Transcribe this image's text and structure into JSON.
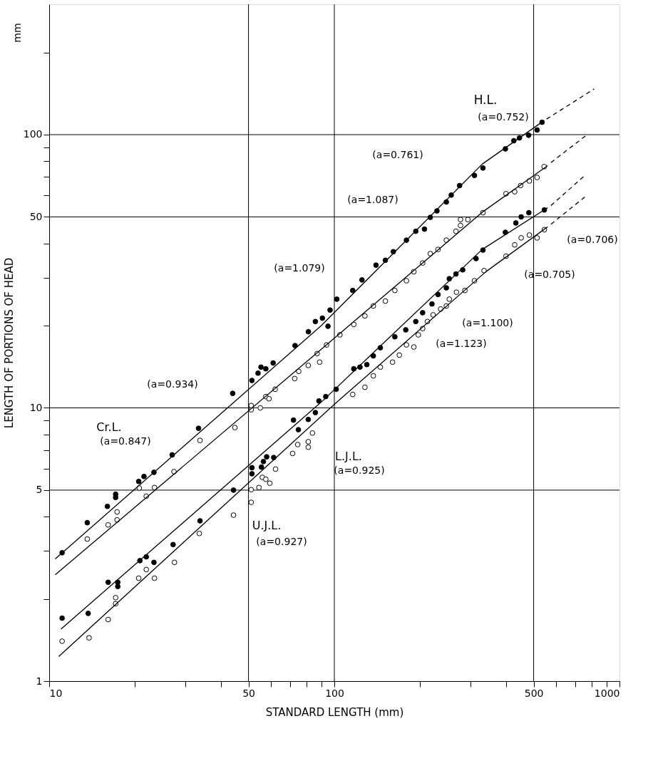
{
  "chart_data": {
    "type": "scatter",
    "xlabel": "STANDARD LENGTH (mm)",
    "ylabel": "LENGTH OF PORTIONS OF HEAD",
    "log": "xy",
    "grid": true,
    "marker": "circle",
    "xlim": [
      10,
      1000
    ],
    "ylim": [
      1,
      300
    ],
    "xticks": [
      10,
      {
        "value": 20,
        "label": null
      },
      {
        "value": 30,
        "label": null
      },
      {
        "value": 40,
        "label": null
      },
      50,
      {
        "value": 60,
        "label": null
      },
      {
        "value": 70,
        "label": null
      },
      {
        "value": 80,
        "label": null
      },
      {
        "value": 90,
        "label": null
      },
      100,
      {
        "value": 200,
        "label": null
      },
      {
        "value": 300,
        "label": null
      },
      {
        "value": 400,
        "label": null
      },
      500,
      {
        "value": 600,
        "label": null
      },
      {
        "value": 700,
        "label": null
      },
      {
        "value": 800,
        "label": null
      },
      {
        "value": 900,
        "label": null
      },
      1000
    ],
    "yticks": [
      1,
      {
        "value": 2,
        "label": null
      },
      {
        "value": 3,
        "label": null
      },
      {
        "value": 4,
        "label": null
      },
      5,
      {
        "value": 6,
        "label": null
      },
      {
        "value": 7,
        "label": null
      },
      {
        "value": 8,
        "label": null
      },
      {
        "value": 9,
        "label": null
      },
      10,
      {
        "value": 20,
        "label": null
      },
      {
        "value": 30,
        "label": null
      },
      {
        "value": 40,
        "label": null
      },
      50,
      {
        "value": 60,
        "label": null
      },
      {
        "value": 70,
        "label": null
      },
      {
        "value": 80,
        "label": null
      },
      {
        "value": 90,
        "label": null
      },
      100,
      {
        "value": 200,
        "label": null
      }
    ],
    "series": [
      {
        "color": "#000000",
        "x": [
          11.1,
          13.6,
          16.0,
          17.1,
          17.1,
          20.6,
          21.5,
          23.3,
          27.0,
          33.4,
          44.0,
          51.4,
          54,
          57.5,
          55.3,
          61,
          72.8,
          81.1,
          85.8,
          90.8,
          95,
          96.6,
          102,
          116,
          125,
          140,
          151,
          161,
          179,
          193,
          207,
          217,
          229,
          247,
          257,
          275,
          310,
          332,
          398,
          426,
          446,
          480,
          514,
          535
        ],
        "values": [
          2.95,
          3.8,
          4.36,
          4.7,
          4.83,
          5.38,
          5.61,
          5.81,
          6.73,
          8.42,
          11.3,
          12.6,
          13.4,
          13.9,
          14.1,
          14.6,
          16.9,
          19.0,
          20.7,
          21.3,
          19.9,
          22.8,
          25.0,
          26.9,
          29.4,
          33.3,
          34.7,
          37.3,
          41.1,
          44.3,
          45.1,
          49.8,
          52.6,
          56.7,
          60.1,
          65.1,
          70.9,
          75.5,
          88.7,
          95,
          97.3,
          99.5,
          104,
          111
        ]
      },
      {
        "color": "#ffffff",
        "x": [
          13.6,
          16.1,
          17.3,
          17.3,
          21.9,
          20.7,
          23.4,
          27.4,
          33.8,
          44.8,
          51.1,
          51.1,
          55,
          57.5,
          59,
          62,
          72.6,
          75,
          81,
          88.8,
          87,
          93.9,
          104.6,
          117,
          128,
          137,
          151,
          163,
          179,
          190,
          204,
          217,
          231,
          247,
          267,
          277,
          294,
          277,
          332,
          400,
          429,
          450,
          483,
          514,
          544
        ],
        "values": [
          3.31,
          3.73,
          3.89,
          4.16,
          4.75,
          5.09,
          5.11,
          5.84,
          7.6,
          8.47,
          9.84,
          10.2,
          10.0,
          11.0,
          10.8,
          11.7,
          12.8,
          13.6,
          14.3,
          14.7,
          15.8,
          17.0,
          18.5,
          20.2,
          21.7,
          23.6,
          24.6,
          26.9,
          29.2,
          31.5,
          33.9,
          36.7,
          38.0,
          41.1,
          44.3,
          46.5,
          48.9,
          48.9,
          51.8,
          60.8,
          61.8,
          65.1,
          67.7,
          69.7,
          76.4
        ]
      },
      {
        "color": "#000000",
        "x": [
          11.1,
          13.7,
          16.1,
          17.4,
          17.4,
          20.8,
          21.9,
          23.3,
          27.2,
          33.8,
          44.3,
          51.4,
          51.4,
          55.5,
          56.4,
          57.9,
          61.3,
          71.9,
          74.8,
          81,
          85.8,
          88.3,
          93.3,
          101.5,
          117,
          123,
          130,
          137,
          145,
          163,
          178,
          193,
          204,
          220,
          231,
          247,
          253,
          267,
          282,
          314,
          332,
          398,
          433,
          452,
          481,
          545
        ],
        "values": [
          1.7,
          1.77,
          2.3,
          2.3,
          2.22,
          2.76,
          2.85,
          2.72,
          3.16,
          3.86,
          5.0,
          5.74,
          6.04,
          6.07,
          6.36,
          6.62,
          6.58,
          9.02,
          8.32,
          9.07,
          9.61,
          10.6,
          11.0,
          11.7,
          13.9,
          14.1,
          14.4,
          15.5,
          16.6,
          18.2,
          19.3,
          20.7,
          22.3,
          24.0,
          26.0,
          27.5,
          29.7,
          30.9,
          32.0,
          35.2,
          37.8,
          43.9,
          47.5,
          50.0,
          51.8,
          53.0
        ]
      },
      {
        "color": "#ffffff",
        "x": [
          11.1,
          13.8,
          16.1,
          17.1,
          17.1,
          20.6,
          21.9,
          23.4,
          27.5,
          33.6,
          44.3,
          51.1,
          51.1,
          54.4,
          55.9,
          57.5,
          59.4,
          62.2,
          71.4,
          74.4,
          81,
          81,
          83.8,
          116,
          128,
          137,
          145,
          160,
          169,
          179,
          190,
          197,
          204,
          212,
          222,
          236,
          247,
          253,
          268,
          287,
          310,
          335,
          400,
          429,
          452,
          483,
          514,
          545
        ],
        "values": [
          1.4,
          1.44,
          1.68,
          1.92,
          2.02,
          2.38,
          2.56,
          2.38,
          2.72,
          3.47,
          4.05,
          4.51,
          5.02,
          5.11,
          5.57,
          5.48,
          5.3,
          5.97,
          6.81,
          7.34,
          7.52,
          7.18,
          8.09,
          11.2,
          11.9,
          13.1,
          14.1,
          14.7,
          15.6,
          17.0,
          16.7,
          18.5,
          19.5,
          20.7,
          21.9,
          23.0,
          23.6,
          25.0,
          26.5,
          26.9,
          29.2,
          31.8,
          35.9,
          39.5,
          41.9,
          42.9,
          41.9,
          44.9
        ]
      },
      {
        "type": "line",
        "marker": "none",
        "color": "#000000",
        "line_style": "solid",
        "x": [
          10.5,
          90,
          330,
          540
        ],
        "values": [
          2.8,
          20,
          78,
          112
        ]
      },
      {
        "type": "line",
        "marker": "none",
        "color": "#000000",
        "line_style": "dashed",
        "x": [
          555,
          815
        ],
        "values": [
          114,
          147
        ]
      },
      {
        "type": "line",
        "marker": "none",
        "color": "#000000",
        "line_style": "solid",
        "x": [
          10.5,
          95,
          330,
          560
        ],
        "values": [
          2.45,
          17.2,
          52,
          77
        ]
      },
      {
        "type": "line",
        "marker": "none",
        "color": "#000000",
        "line_style": "dashed",
        "x": [
          575,
          770
        ],
        "values": [
          79,
          100
        ]
      },
      {
        "type": "line",
        "marker": "none",
        "color": "#000000",
        "line_style": "solid",
        "x": [
          11,
          90,
          330,
          560
        ],
        "values": [
          1.55,
          10.5,
          38,
          54
        ]
      },
      {
        "type": "line",
        "marker": "none",
        "color": "#000000",
        "line_style": "dashed",
        "x": [
          575,
          757
        ],
        "values": [
          55,
          71
        ]
      },
      {
        "type": "line",
        "marker": "none",
        "color": "#000000",
        "line_style": "solid",
        "x": [
          10.8,
          100,
          340,
          560
        ],
        "values": [
          1.23,
          10.3,
          31.5,
          46
        ]
      },
      {
        "type": "line",
        "marker": "none",
        "color": "#000000",
        "line_style": "dashed",
        "x": [
          575,
          769
        ],
        "values": [
          47,
          60
        ]
      }
    ],
    "annotations": [
      "mm",
      "H.L.",
      "(a=0.752)",
      "(a=0.761)",
      "(a=1.087)",
      "(a=1.079)",
      "(a=0.934)",
      "Cr.L.",
      "(a=0.847)",
      "L.J.L.",
      "(a=0.925)",
      "U.J.L.",
      "(a=0.927)",
      "(a=0.706)",
      "(a=0.705)",
      "(a=1.100)",
      "(a=1.123)"
    ]
  }
}
